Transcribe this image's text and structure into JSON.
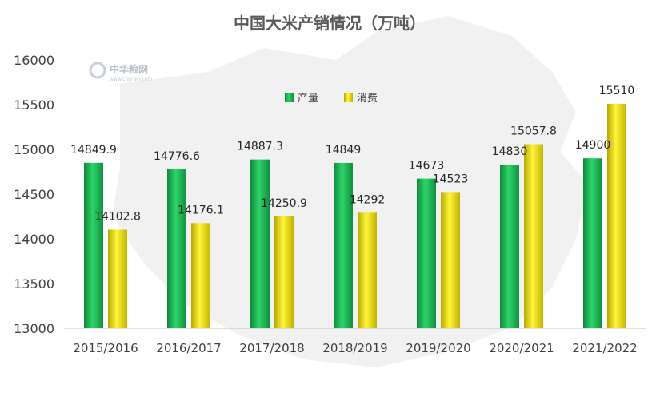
{
  "chart_data": {
    "type": "bar",
    "title": "中国大米产销情况（万吨）",
    "watermark": {
      "brand": "中华粮网",
      "url": "www.cngrain.com"
    },
    "categories": [
      "2015/2016",
      "2016/2017",
      "2017/2018",
      "2018/2019",
      "2019/2020",
      "2020/2021",
      "2021/2022"
    ],
    "series": [
      {
        "name": "产量",
        "color": "#1db954",
        "values": [
          14849.9,
          14776.6,
          14887.3,
          14849,
          14673,
          14830,
          14900
        ],
        "labels": [
          "14849.9",
          "14776.6",
          "14887.3",
          "14849",
          "14673",
          "14830",
          "14900"
        ]
      },
      {
        "name": "消费",
        "color": "#e6df00",
        "values": [
          14102.8,
          14176.1,
          14250.9,
          14292,
          14523,
          15057.8,
          15510
        ],
        "labels": [
          "14102.8",
          "14176.1",
          "14250.9",
          "14292",
          "14523",
          "15057.8",
          "15510"
        ]
      }
    ],
    "y_ticks": [
      "13000",
      "13500",
      "14000",
      "14500",
      "15000",
      "15500",
      "16000"
    ],
    "ylim": [
      13000,
      16000
    ],
    "grid": false,
    "legend_position": "top-center"
  }
}
